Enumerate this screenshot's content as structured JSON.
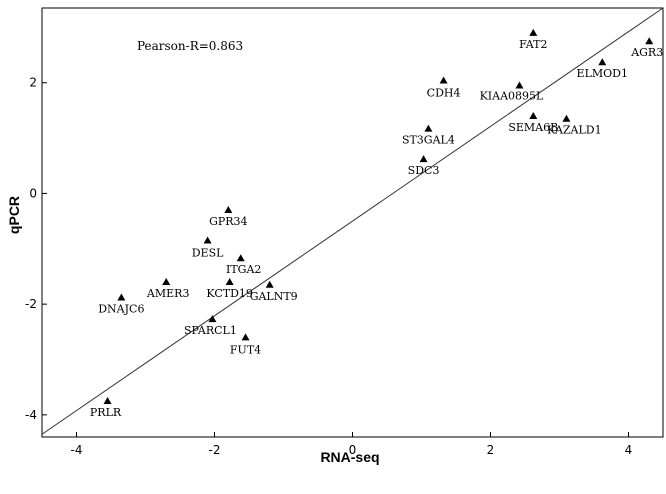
{
  "chart_data": {
    "type": "scatter",
    "xlabel": "RNA-seq",
    "ylabel": "qPCR",
    "xlim": [
      -4.5,
      4.5
    ],
    "ylim": [
      -4.4,
      3.35
    ],
    "x_ticks": [
      -4,
      -2,
      0,
      2,
      4
    ],
    "y_ticks": [
      -4,
      -2,
      0,
      2
    ],
    "grid": false,
    "legend": "none",
    "annotation": "Pearson-R=0.863",
    "fit_line": {
      "x": [
        -4.5,
        4.5
      ],
      "y": [
        -4.35,
        3.35
      ]
    },
    "points": [
      {
        "label": "FAT2",
        "x": 2.62,
        "y": 2.9
      },
      {
        "label": "AGR3",
        "x": 4.3,
        "y": 2.75
      },
      {
        "label": "ELMOD1",
        "x": 3.62,
        "y": 2.37
      },
      {
        "label": "CDH4",
        "x": 1.32,
        "y": 2.04
      },
      {
        "label": "KIAA0895L",
        "x": 2.42,
        "y": 1.95
      },
      {
        "label": "SEMA6B",
        "x": 2.62,
        "y": 1.4
      },
      {
        "label": "KAZALD1",
        "x": 3.1,
        "y": 1.35
      },
      {
        "label": "ST3GAL4",
        "x": 1.1,
        "y": 1.17
      },
      {
        "label": "SDC3",
        "x": 1.03,
        "y": 0.62
      },
      {
        "label": "GPR34",
        "x": -1.8,
        "y": -0.3
      },
      {
        "label": "DESL",
        "x": -2.1,
        "y": -0.85
      },
      {
        "label": "ITGA2",
        "x": -1.62,
        "y": -1.17
      },
      {
        "label": "AMER3",
        "x": -2.7,
        "y": -1.6
      },
      {
        "label": "KCTD19",
        "x": -1.78,
        "y": -1.6
      },
      {
        "label": "GALNT9",
        "x": -1.2,
        "y": -1.65
      },
      {
        "label": "DNAJC6",
        "x": -3.35,
        "y": -1.88
      },
      {
        "label": "SPARCL1",
        "x": -2.03,
        "y": -2.27
      },
      {
        "label": "FUT4",
        "x": -1.55,
        "y": -2.6
      },
      {
        "label": "PRLR",
        "x": -3.55,
        "y": -3.75
      }
    ]
  }
}
